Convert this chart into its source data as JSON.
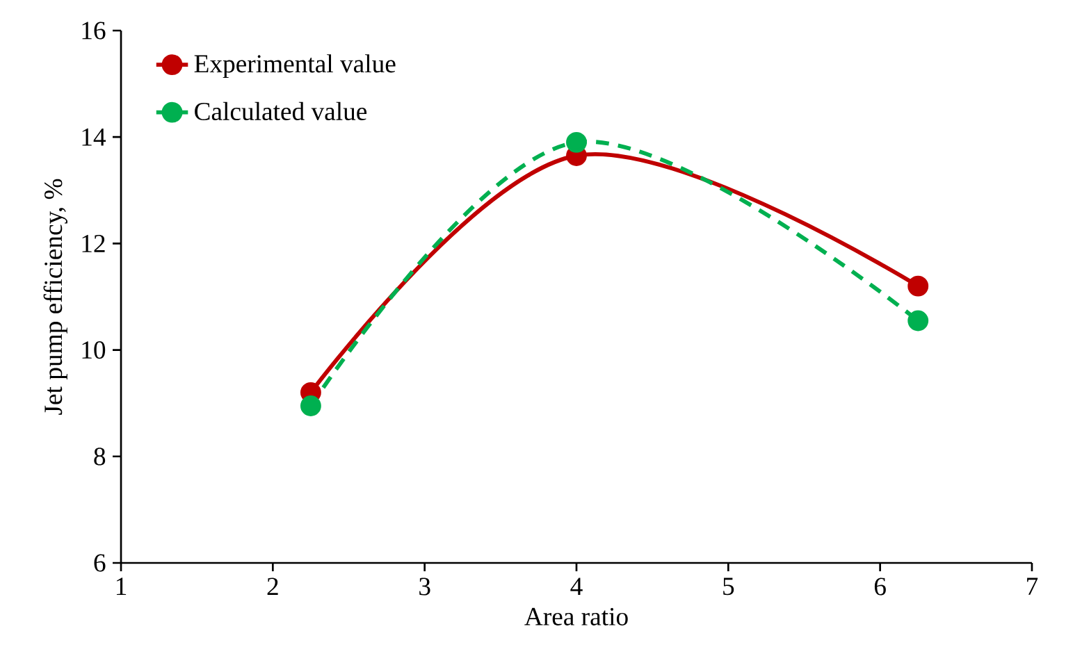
{
  "chart_data": {
    "type": "line",
    "xlabel": "Area ratio",
    "ylabel": "Jet pump efficiency, %",
    "x": [
      2.25,
      4,
      6.25
    ],
    "series": [
      {
        "name": "Experimental value",
        "color": "#c00000",
        "values": [
          9.2,
          13.65,
          11.2
        ],
        "line_style": "solid"
      },
      {
        "name": "Calculated value",
        "color": "#00b050",
        "values": [
          8.95,
          13.9,
          10.55
        ],
        "line_style": "dashed"
      }
    ],
    "xlim": [
      1,
      7
    ],
    "ylim": [
      6,
      16
    ],
    "xticks": [
      1,
      2,
      3,
      4,
      5,
      6,
      7
    ],
    "yticks": [
      6,
      8,
      10,
      12,
      14,
      16
    ],
    "marker": "circle",
    "legend": "top left"
  }
}
